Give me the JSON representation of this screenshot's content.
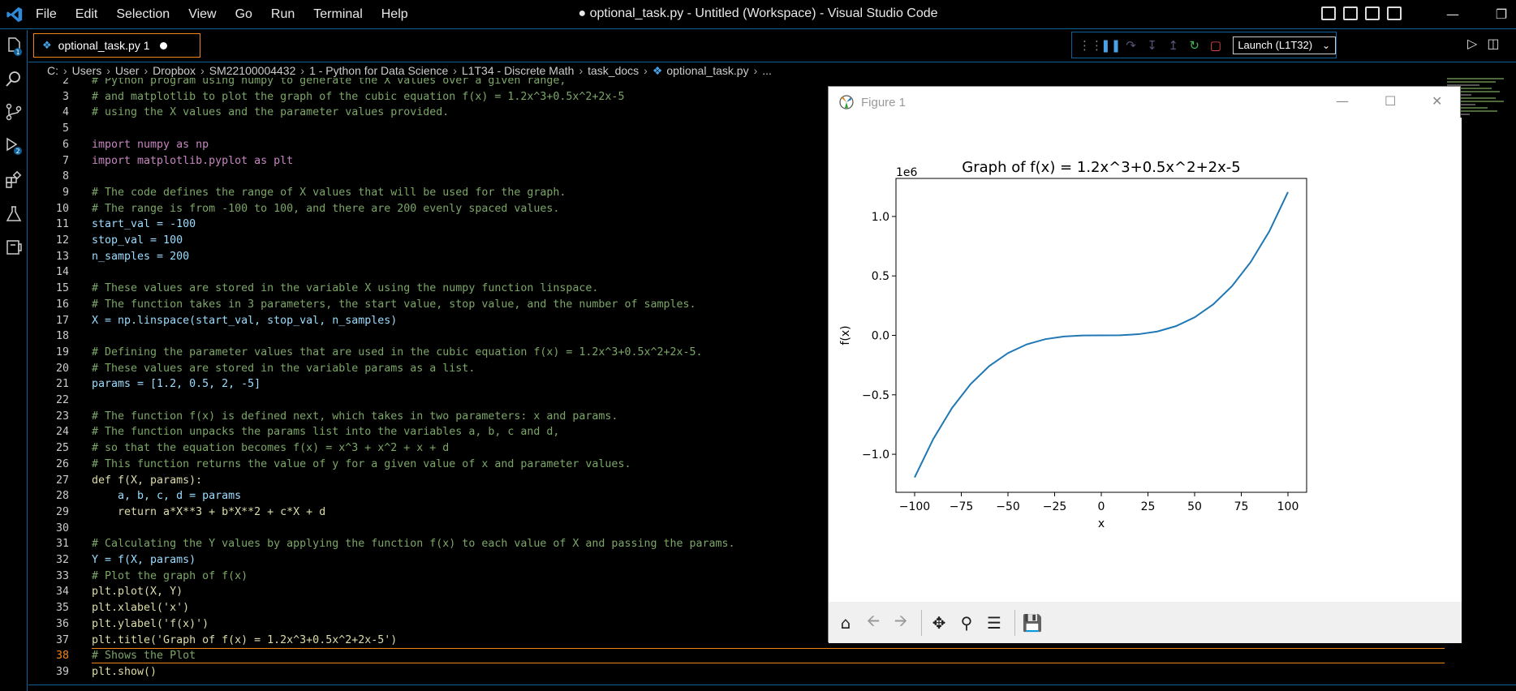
{
  "window_title": "● optional_task.py - Untitled (Workspace) - Visual Studio Code",
  "menu": [
    "File",
    "Edit",
    "Selection",
    "View",
    "Go",
    "Run",
    "Terminal",
    "Help"
  ],
  "activity_badges": {
    "explorer": "1",
    "debug": "2"
  },
  "tab": {
    "label": "optional_task.py 1"
  },
  "debug": {
    "launch_config": "Launch (L1T32)"
  },
  "breadcrumb": [
    "C:",
    "Users",
    "User",
    "Dropbox",
    "SM22100004432",
    "1 - Python for Data Science",
    "L1T34 - Discrete Math",
    "task_docs",
    "optional_task.py",
    "..."
  ],
  "editor": {
    "lines": [
      {
        "n": "2",
        "t": "# Python program using numpy to generate the X values over a given range,"
      },
      {
        "n": "3",
        "t": "# and matplotlib to plot the graph of the cubic equation f(x) = 1.2x^3+0.5x^2+2x-5"
      },
      {
        "n": "4",
        "t": "# using the X values and the parameter values provided."
      },
      {
        "n": "5",
        "t": ""
      },
      {
        "n": "6",
        "t": "import numpy as np"
      },
      {
        "n": "7",
        "t": "import matplotlib.pyplot as plt"
      },
      {
        "n": "8",
        "t": ""
      },
      {
        "n": "9",
        "t": "# The code defines the range of X values that will be used for the graph."
      },
      {
        "n": "10",
        "t": "# The range is from -100 to 100, and there are 200 evenly spaced values."
      },
      {
        "n": "11",
        "t": "start_val = -100"
      },
      {
        "n": "12",
        "t": "stop_val = 100"
      },
      {
        "n": "13",
        "t": "n_samples = 200"
      },
      {
        "n": "14",
        "t": ""
      },
      {
        "n": "15",
        "t": "# These values are stored in the variable X using the numpy function linspace."
      },
      {
        "n": "16",
        "t": "# The function takes in 3 parameters, the start value, stop value, and the number of samples."
      },
      {
        "n": "17",
        "t": "X = np.linspace(start_val, stop_val, n_samples)"
      },
      {
        "n": "18",
        "t": ""
      },
      {
        "n": "19",
        "t": "# Defining the parameter values that are used in the cubic equation f(x) = 1.2x^3+0.5x^2+2x-5."
      },
      {
        "n": "20",
        "t": "# These values are stored in the variable params as a list."
      },
      {
        "n": "21",
        "t": "params = [1.2, 0.5, 2, -5]"
      },
      {
        "n": "22",
        "t": ""
      },
      {
        "n": "23",
        "t": "# The function f(x) is defined next, which takes in two parameters: x and params."
      },
      {
        "n": "24",
        "t": "# The function unpacks the params list into the variables a, b, c and d,"
      },
      {
        "n": "25",
        "t": "# so that the equation becomes f(x) = x^3 + x^2 + x + d"
      },
      {
        "n": "26",
        "t": "# This function returns the value of y for a given value of x and parameter values."
      },
      {
        "n": "27",
        "t": "def f(X, params):"
      },
      {
        "n": "28",
        "t": "    a, b, c, d = params"
      },
      {
        "n": "29",
        "t": "    return a*X**3 + b*X**2 + c*X + d"
      },
      {
        "n": "30",
        "t": ""
      },
      {
        "n": "31",
        "t": "# Calculating the Y values by applying the function f(x) to each value of X and passing the params."
      },
      {
        "n": "32",
        "t": "Y = f(X, params)"
      },
      {
        "n": "33",
        "t": "# Plot the graph of f(x)"
      },
      {
        "n": "34",
        "t": "plt.plot(X, Y)"
      },
      {
        "n": "35",
        "t": "plt.xlabel('x')"
      },
      {
        "n": "36",
        "t": "plt.ylabel('f(x)')"
      },
      {
        "n": "37",
        "t": "plt.title('Graph of f(x) = 1.2x^3+0.5x^2+2x-5')"
      },
      {
        "n": "38",
        "t": "# Shows the Plot"
      },
      {
        "n": "39",
        "t": "plt.show()"
      }
    ],
    "current_line": "38"
  },
  "figure": {
    "window_title": "Figure 1"
  },
  "chart_data": {
    "type": "line",
    "title": "Graph of f(x) = 1.2x^3+0.5x^2+2x-5",
    "xlabel": "x",
    "ylabel": "f(x)",
    "y_offset_label": "1e6",
    "xlim": [
      -110,
      110
    ],
    "ylim": [
      -1.32,
      1.32
    ],
    "x_ticks": [
      -100,
      -75,
      -50,
      -25,
      0,
      25,
      50,
      75,
      100
    ],
    "x_tick_labels": [
      "−100",
      "−75",
      "−50",
      "−25",
      "0",
      "25",
      "50",
      "75",
      "100"
    ],
    "y_ticks": [
      -1.0,
      -0.5,
      0.0,
      0.5,
      1.0
    ],
    "y_tick_labels": [
      "−1.0",
      "−0.5",
      "0.0",
      "0.5",
      "1.0"
    ],
    "grid": false,
    "series": [
      {
        "color": "#1f77b4",
        "x": [
          -100,
          -90,
          -80,
          -70,
          -60,
          -50,
          -40,
          -30,
          -20,
          -10,
          0,
          10,
          20,
          30,
          40,
          50,
          60,
          70,
          80,
          90,
          100
        ],
        "y": [
          -1.195205,
          -0.870935,
          -0.611365,
          -0.409305,
          -0.257525,
          -0.148855,
          -0.076085,
          -0.032015,
          -0.009645,
          -0.001175,
          -5e-06,
          0.001265,
          0.009835,
          0.032605,
          0.077475,
          0.151345,
          0.261115,
          0.413685,
          0.615955,
          0.874825,
          1.205195
        ]
      }
    ]
  }
}
